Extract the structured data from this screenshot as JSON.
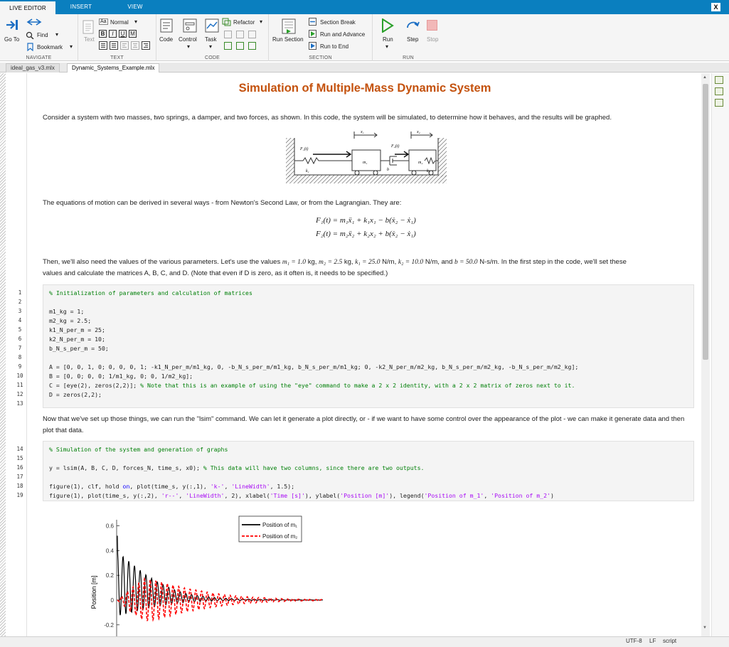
{
  "ribbon_tabs": [
    "LIVE EDITOR",
    "INSERT",
    "VIEW"
  ],
  "close_label": "X",
  "navigate": {
    "goto": "Go To",
    "find": "Find",
    "bookmark": "Bookmark",
    "label": "NAVIGATE"
  },
  "text": {
    "style": "Normal",
    "text_btn": "Text",
    "bold": "B",
    "italic": "I",
    "underline": "U",
    "mono": "M",
    "label": "TEXT"
  },
  "code": {
    "code_btn": "Code",
    "control": "Control",
    "task": "Task",
    "refactor": "Refactor",
    "label": "CODE"
  },
  "section": {
    "run_section": "Run Section",
    "section_break": "Section Break",
    "run_advance": "Run and Advance",
    "run_end": "Run to End",
    "label": "SECTION"
  },
  "run": {
    "run": "Run",
    "step": "Step",
    "stop": "Stop",
    "label": "RUN"
  },
  "doc_tabs": [
    "ideal_gas_v3.mlx",
    "Dynamic_Systems_Example.mlx"
  ],
  "doc": {
    "title": "Simulation of Multiple-Mass Dynamic System",
    "intro": "Consider a system with two masses, two springs, a damper, and two forces, as shown. In this code, the system will be simulated, to determine how it behaves, and the results will be graphed.",
    "diagram": {
      "x1": "x₁",
      "x2": "x₂",
      "f1": "F₁(t)",
      "f2": "F₂(t)",
      "m1": "m₁",
      "m2": "m₂",
      "k1": "k₁",
      "k2": "k₂",
      "b": "b"
    },
    "eq_intro": "The equations of motion can be derived in several ways - from Newton's Second Law, or from the Lagrangian. They are:",
    "eq1": "F₁(t) = m₁ẍ₁ + k₁x₁ − b(ẋ₂ − ẋ₁)",
    "eq2": "F₂(t) = m₂ẍ₂ + k₂x₂ + b(ẋ₂ − ẋ₁)",
    "params_a": "Then, we'll also need the values of the various parameters. Let's use the values",
    "p_m1": "m₁ = 1.0",
    "u_kg1": "kg,",
    "p_m2": "m₂ = 2.5",
    "u_kg2": "kg,",
    "p_k1": "k₁ = 25.0",
    "u_nm1": "N/m,",
    "p_k2": "k₂ = 10.0",
    "u_nm2": "N/m, and",
    "p_b": "b = 50.0",
    "u_ns": "N-s/m. In the first step in the code, we'll set these",
    "params_b": "values and calculate the matrices A, B, C, and D. (Note that even if D is zero, as it often is, it needs to be specified.)",
    "between": "Now that we've set up those things, we can run the \"lsim\" command. We can let it generate a plot directly, or - if we want to have some control over the appearance of the plot - we can make it generate data and then plot that data."
  },
  "code1": {
    "l1": "% Initialization of parameters and calculation of matrices",
    "l3": "m1_kg = 1;",
    "l4": "m2_kg = 2.5;",
    "l5": "k1_N_per_m = 25;",
    "l6": "k2_N_per_m = 10;",
    "l7": "b_N_s_per_m = 50;",
    "l9": "A = [0, 0, 1, 0; 0, 0, 0, 1; -k1_N_per_m/m1_kg, 0, -b_N_s_per_m/m1_kg, b_N_s_per_m/m1_kg; 0, -k2_N_per_m/m2_kg, b_N_s_per_m/m2_kg, -b_N_s_per_m/m2_kg];",
    "l10": "B = [0, 0; 0, 0; 1/m1_kg, 0; 0, 1/m2_kg];",
    "l11a": "C = [eye(2), zeros(2,2)]; ",
    "l11b": "% Note that this is an example of using the \"eye\" command to make a 2 x 2 identity, with a 2 x 2 matrix of zeros next to it.",
    "l12": "D = zeros(2,2);"
  },
  "code2": {
    "l14": "% Simulation of the system and generation of graphs",
    "l16a": "y = lsim(A, B, C, D, forces_N, time_s, x0); ",
    "l16b": "% This data will have two columns, since there are two outputs.",
    "l18a": "figure(1), clf, hold ",
    "l18kw": "on",
    "l18b": ", plot(time_s, y(:,1), ",
    "l18s1": "'k-'",
    "l18c": ", ",
    "l18s2": "'LineWidth'",
    "l18d": ", 1.5);",
    "l19a": "figure(1), plot(time_s, y(:,2), ",
    "l19s1": "'r--'",
    "l19b": ", ",
    "l19s2": "'LineWidth'",
    "l19c": ", 2), xlabel(",
    "l19s3": "'Time [s]'",
    "l19d": "), ylabel(",
    "l19s4": "'Position [m]'",
    "l19e": "), legend(",
    "l19s5": "'Position of m_1'",
    "l19f": ", ",
    "l19s6": "'Position of m_2'",
    "l19g": ")"
  },
  "line_numbers": [
    "1",
    "2",
    "3",
    "4",
    "5",
    "6",
    "7",
    "8",
    "9",
    "10",
    "11",
    "12",
    "13",
    "14",
    "15",
    "16",
    "17",
    "18",
    "19"
  ],
  "chart_data": {
    "type": "line",
    "ylabel": "Position [m]",
    "yticks": [
      "0.6",
      "0.4",
      "0.2",
      "0",
      "-0.2"
    ],
    "ylim": [
      -0.3,
      0.65
    ],
    "x": [
      0,
      1,
      2,
      3,
      4,
      5,
      6,
      7,
      8,
      9,
      10,
      11,
      12,
      13,
      14,
      15
    ],
    "series": [
      {
        "name": "Position of m₁",
        "color": "#000000",
        "style": "solid",
        "values": [
          0.52,
          0.4,
          0.28,
          0.19,
          0.12,
          0.07,
          0.045,
          0.028,
          0.018,
          0.012,
          0.008,
          0.006,
          0.004,
          0.003,
          0.002,
          0.002
        ]
      },
      {
        "name": "Position of m₂",
        "color": "#ff0000",
        "style": "dashed",
        "values": [
          0.0,
          0.05,
          0.09,
          0.08,
          0.065,
          0.05,
          0.04,
          0.03,
          0.022,
          0.016,
          0.012,
          0.009,
          0.006,
          0.004,
          0.003,
          0.002
        ]
      }
    ],
    "legend": [
      "Position of m₁",
      "Position of m₂"
    ]
  },
  "status": {
    "encoding": "UTF-8",
    "eol": "LF",
    "type": "script"
  }
}
